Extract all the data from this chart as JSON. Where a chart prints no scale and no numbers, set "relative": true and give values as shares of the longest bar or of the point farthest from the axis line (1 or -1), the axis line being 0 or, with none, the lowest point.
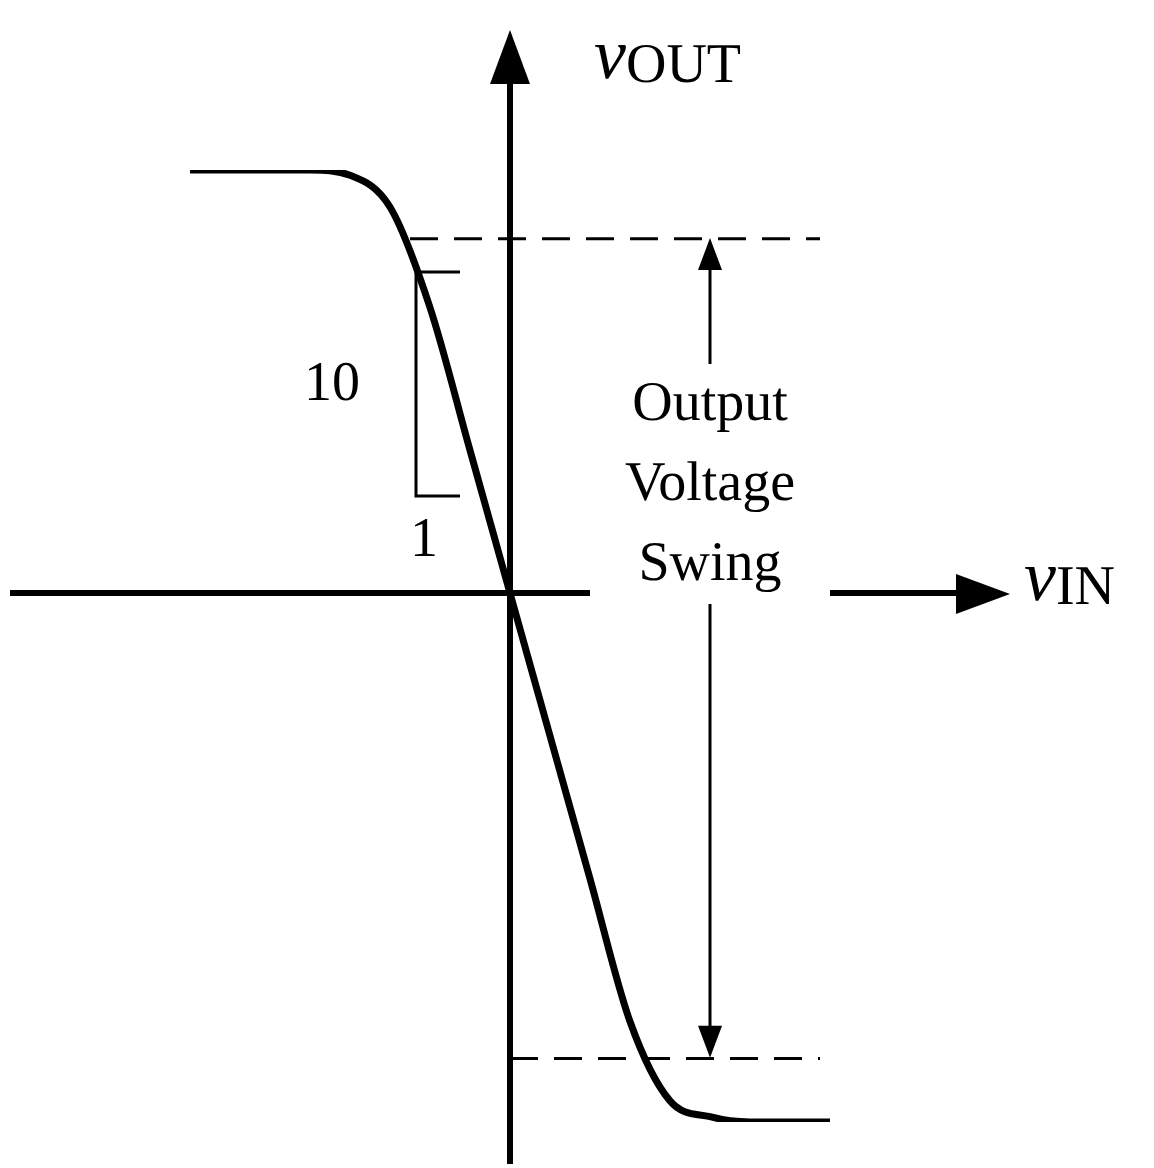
{
  "chart_data": {
    "type": "line",
    "relative": true,
    "xlabel": "v$_{IN}$",
    "ylabel": "v$_{OUT}$",
    "color": "#000000",
    "marker": "none",
    "line_style": "solid",
    "legend": false,
    "categories": [
      null,
      null,
      null,
      null,
      null,
      null,
      null,
      null,
      null,
      null,
      null,
      null,
      null,
      null,
      null,
      null,
      null
    ],
    "values": [
      0.8,
      0.8,
      0.8,
      0.8,
      0.79,
      0.73,
      0.54,
      0.27,
      0,
      -0.27,
      -0.54,
      -0.81,
      -0.96,
      -0.99,
      -1,
      -1,
      -1
    ],
    "ref_lines": [
      {
        "axis": "y",
        "value": 0.67,
        "line_style": "dashed"
      },
      {
        "axis": "y",
        "value": -0.88,
        "line_style": "dashed"
      }
    ],
    "annotations": [
      "10",
      "1",
      "Output\nVoltage\nSwing"
    ]
  }
}
